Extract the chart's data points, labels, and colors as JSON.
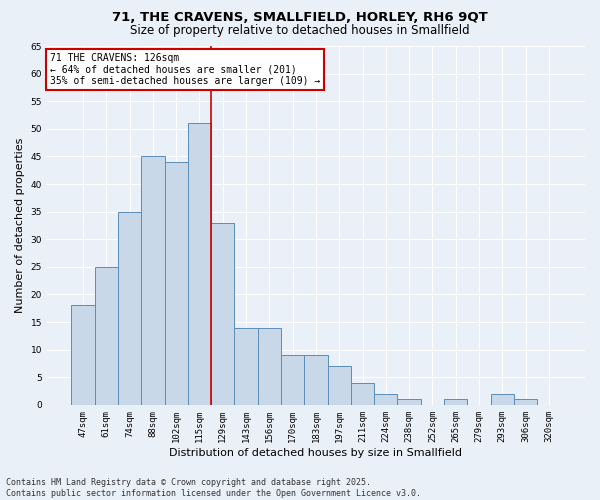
{
  "title": "71, THE CRAVENS, SMALLFIELD, HORLEY, RH6 9QT",
  "subtitle": "Size of property relative to detached houses in Smallfield",
  "xlabel": "Distribution of detached houses by size in Smallfield",
  "ylabel": "Number of detached properties",
  "categories": [
    "47sqm",
    "61sqm",
    "74sqm",
    "88sqm",
    "102sqm",
    "115sqm",
    "129sqm",
    "143sqm",
    "156sqm",
    "170sqm",
    "183sqm",
    "197sqm",
    "211sqm",
    "224sqm",
    "238sqm",
    "252sqm",
    "265sqm",
    "279sqm",
    "293sqm",
    "306sqm",
    "320sqm"
  ],
  "values": [
    18,
    25,
    35,
    45,
    44,
    51,
    33,
    14,
    14,
    9,
    9,
    7,
    4,
    2,
    1,
    0,
    1,
    0,
    2,
    1,
    0
  ],
  "bar_color": "#c8d8e8",
  "bar_edge_color": "#5b8db8",
  "background_color": "#eaf0f8",
  "grid_color": "#ffffff",
  "vline_color": "#cc0000",
  "annotation_title": "71 THE CRAVENS: 126sqm",
  "annotation_line1": "← 64% of detached houses are smaller (201)",
  "annotation_line2": "35% of semi-detached houses are larger (109) →",
  "annotation_box_color": "#ffffff",
  "annotation_box_edge_color": "#cc0000",
  "ylim": [
    0,
    65
  ],
  "yticks": [
    0,
    5,
    10,
    15,
    20,
    25,
    30,
    35,
    40,
    45,
    50,
    55,
    60,
    65
  ],
  "footer_line1": "Contains HM Land Registry data © Crown copyright and database right 2025.",
  "footer_line2": "Contains public sector information licensed under the Open Government Licence v3.0.",
  "title_fontsize": 9.5,
  "subtitle_fontsize": 8.5,
  "xlabel_fontsize": 8,
  "ylabel_fontsize": 8,
  "tick_fontsize": 6.5,
  "annotation_fontsize": 7,
  "footer_fontsize": 6
}
